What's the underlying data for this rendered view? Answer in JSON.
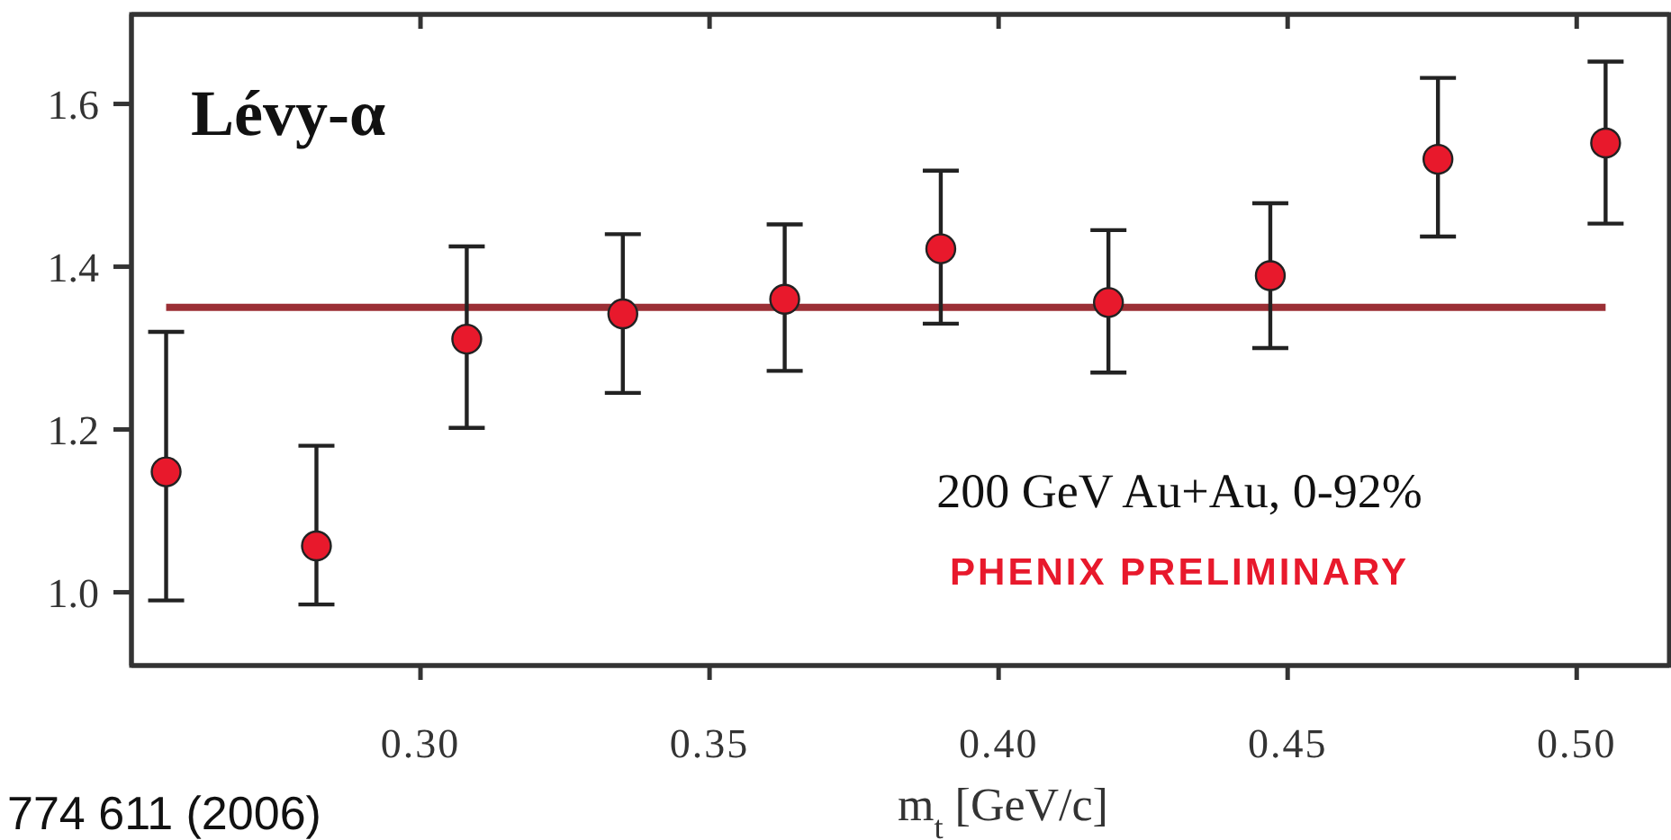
{
  "chart_data": {
    "type": "scatter",
    "title": "Lévy-α",
    "xlabel": "m$_{t}$ [GeV/c]",
    "x": [
      0.256,
      0.282,
      0.308,
      0.335,
      0.363,
      0.39,
      0.419,
      0.447,
      0.476,
      0.505
    ],
    "series": [
      {
        "color": "#e8192c",
        "values": [
          1.148,
          1.057,
          1.311,
          1.342,
          1.36,
          1.422,
          1.356,
          1.389,
          1.532,
          1.552
        ],
        "errors": [
          [
            0.99,
            1.32
          ],
          [
            0.985,
            1.18
          ],
          [
            1.202,
            1.425
          ],
          [
            1.245,
            1.44
          ],
          [
            1.272,
            1.452
          ],
          [
            1.33,
            1.518
          ],
          [
            1.27,
            1.445
          ],
          [
            1.3,
            1.478
          ],
          [
            1.437,
            1.632
          ],
          [
            1.453,
            1.652
          ]
        ]
      }
    ],
    "xlim": [
      0.25,
      0.516
    ],
    "ylim": [
      0.91,
      1.71
    ],
    "xticks": [
      {
        "value": 0.3,
        "label": "0.30"
      },
      {
        "value": 0.35,
        "label": "0.35"
      },
      {
        "value": 0.4,
        "label": "0.40"
      },
      {
        "value": 0.45,
        "label": "0.45"
      },
      {
        "value": 0.5,
        "label": "0.50"
      }
    ],
    "yticks": [
      {
        "value": 1.0,
        "label": "1.0"
      },
      {
        "value": 1.2,
        "label": "1.2"
      },
      {
        "value": 1.4,
        "label": "1.4"
      },
      {
        "value": 1.6,
        "label": "1.6"
      }
    ],
    "ref_lines": [
      {
        "axis": "y",
        "value": 1.35,
        "color": "#9b2f35",
        "line_style": "solid"
      }
    ],
    "marker": "circle",
    "grid": false,
    "annotations": [
      "200 GeV Au+Au, 0-92%",
      "PHENIX PRELIMINARY",
      "774 611 (2006)"
    ]
  }
}
